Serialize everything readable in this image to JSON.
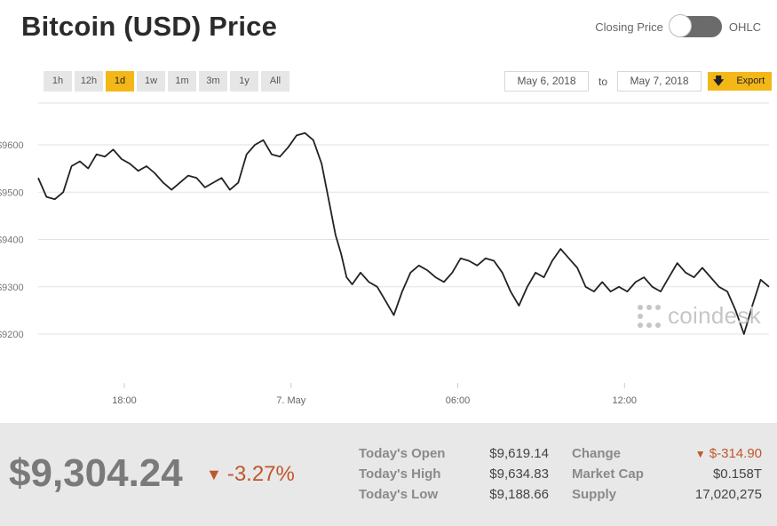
{
  "header": {
    "title": "Bitcoin (USD) Price"
  },
  "toggle": {
    "left_label": "Closing Price",
    "right_label": "OHLC"
  },
  "ranges": [
    "1h",
    "12h",
    "1d",
    "1w",
    "1m",
    "3m",
    "1y",
    "All"
  ],
  "active_range": "1d",
  "date_range": {
    "from": "May 6, 2018",
    "to_label": "to",
    "to": "May 7, 2018"
  },
  "export_label": "Export",
  "watermark": "coindesk",
  "colors": {
    "accent": "#f3b718",
    "negative": "#c0572b",
    "line": "#222222"
  },
  "summary": {
    "price": "$9,304.24",
    "change_pct": "-3.27%",
    "todays_open_label": "Today's Open",
    "todays_open": "$9,619.14",
    "todays_high_label": "Today's High",
    "todays_high": "$9,634.83",
    "todays_low_label": "Today's Low",
    "todays_low": "$9,188.66",
    "change_label": "Change",
    "change": "$-314.90",
    "market_cap_label": "Market Cap",
    "market_cap": "$0.158T",
    "supply_label": "Supply",
    "supply": "17,020,275"
  },
  "chart_data": {
    "type": "line",
    "title": "",
    "xlabel": "",
    "ylabel": "",
    "ylim": [
      9100,
      9700
    ],
    "y_ticks": [
      9200,
      9300,
      9400,
      9500,
      9600
    ],
    "y_tick_labels": [
      "$9200",
      "$9300",
      "$9400",
      "$9500",
      "$9600"
    ],
    "x_ticks": [
      18,
      24,
      30,
      36
    ],
    "x_tick_labels": [
      "18:00",
      "7. May",
      "06:00",
      "12:00"
    ],
    "xlim": [
      14.9,
      41.2
    ],
    "grid": true,
    "series": [
      {
        "x": [
          14.9,
          15.2,
          15.5,
          15.8,
          16.1,
          16.4,
          16.7,
          17.0,
          17.3,
          17.6,
          17.9,
          18.2,
          18.5,
          18.8,
          19.1,
          19.4,
          19.7,
          20.0,
          20.3,
          20.6,
          20.9,
          21.2,
          21.5,
          21.8,
          22.1,
          22.4,
          22.7,
          23.0,
          23.3,
          23.6,
          23.9,
          24.2,
          24.5,
          24.8,
          25.1,
          25.4,
          25.6,
          25.8,
          26.0,
          26.2,
          26.5,
          26.8,
          27.1,
          27.4,
          27.7,
          28.0,
          28.3,
          28.6,
          28.9,
          29.2,
          29.5,
          29.8,
          30.1,
          30.4,
          30.7,
          31.0,
          31.3,
          31.6,
          31.9,
          32.2,
          32.5,
          32.8,
          33.1,
          33.4,
          33.7,
          34.0,
          34.3,
          34.6,
          34.9,
          35.2,
          35.5,
          35.8,
          36.1,
          36.4,
          36.7,
          37.0,
          37.3,
          37.6,
          37.9,
          38.2,
          38.5,
          38.8,
          39.1,
          39.4,
          39.7,
          40.0,
          40.3,
          40.6,
          40.9,
          41.2
        ],
        "y": [
          9530,
          9490,
          9485,
          9500,
          9555,
          9565,
          9550,
          9580,
          9575,
          9590,
          9570,
          9560,
          9545,
          9555,
          9540,
          9520,
          9505,
          9520,
          9535,
          9530,
          9510,
          9520,
          9530,
          9505,
          9520,
          9580,
          9600,
          9610,
          9580,
          9575,
          9595,
          9620,
          9625,
          9610,
          9560,
          9470,
          9410,
          9370,
          9320,
          9305,
          9330,
          9310,
          9300,
          9270,
          9240,
          9290,
          9330,
          9345,
          9335,
          9320,
          9310,
          9330,
          9360,
          9355,
          9345,
          9360,
          9355,
          9330,
          9290,
          9260,
          9300,
          9330,
          9320,
          9355,
          9380,
          9360,
          9340,
          9300,
          9290,
          9310,
          9290,
          9300,
          9290,
          9310,
          9320,
          9300,
          9290,
          9320,
          9350,
          9330,
          9320,
          9340,
          9320,
          9300,
          9290,
          9250,
          9200,
          9260,
          9315,
          9300
        ]
      }
    ]
  }
}
